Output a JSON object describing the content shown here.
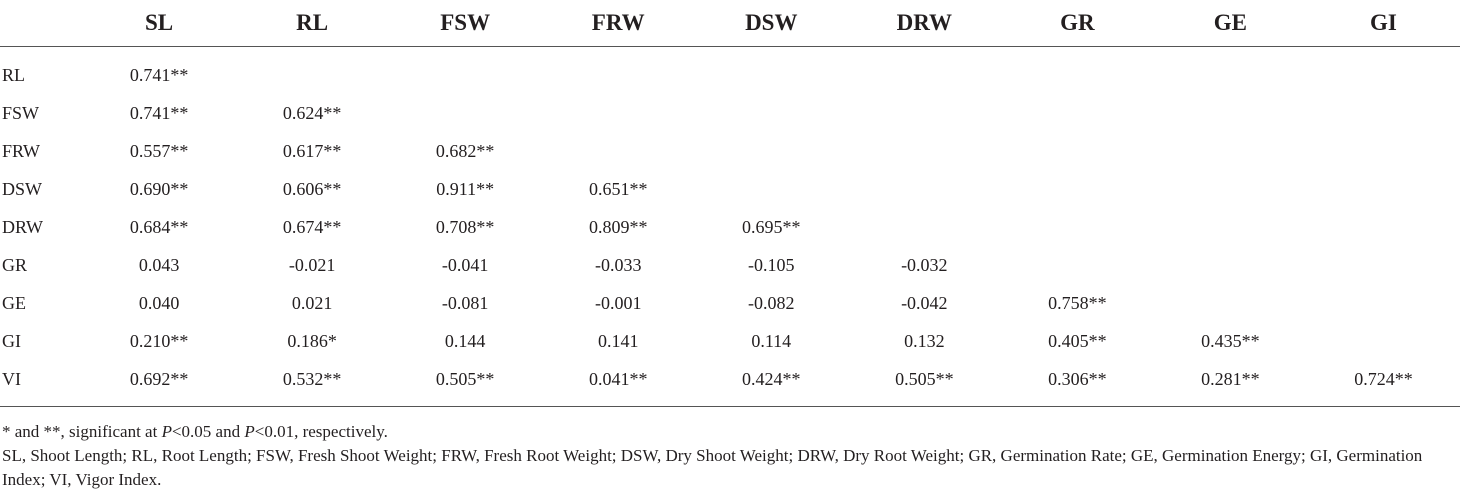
{
  "table": {
    "columns": [
      "SL",
      "RL",
      "FSW",
      "FRW",
      "DSW",
      "DRW",
      "GR",
      "GE",
      "GI"
    ],
    "rows": [
      {
        "label": "RL",
        "cells": [
          "0.741**",
          "",
          "",
          "",
          "",
          "",
          "",
          "",
          ""
        ]
      },
      {
        "label": "FSW",
        "cells": [
          "0.741**",
          "0.624**",
          "",
          "",
          "",
          "",
          "",
          "",
          ""
        ]
      },
      {
        "label": "FRW",
        "cells": [
          "0.557**",
          "0.617**",
          "0.682**",
          "",
          "",
          "",
          "",
          "",
          ""
        ]
      },
      {
        "label": "DSW",
        "cells": [
          "0.690**",
          "0.606**",
          "0.911**",
          "0.651**",
          "",
          "",
          "",
          "",
          ""
        ]
      },
      {
        "label": "DRW",
        "cells": [
          "0.684**",
          "0.674**",
          "0.708**",
          "0.809**",
          "0.695**",
          "",
          "",
          "",
          ""
        ]
      },
      {
        "label": "GR",
        "cells": [
          "0.043",
          "-0.021",
          "-0.041",
          "-0.033",
          "-0.105",
          "-0.032",
          "",
          "",
          ""
        ]
      },
      {
        "label": "GE",
        "cells": [
          "0.040",
          "0.021",
          "-0.081",
          "-0.001",
          "-0.082",
          "-0.042",
          "0.758**",
          "",
          ""
        ]
      },
      {
        "label": "GI",
        "cells": [
          "0.210**",
          "0.186*",
          "0.144",
          "0.141",
          "0.114",
          "0.132",
          "0.405**",
          "0.435**",
          ""
        ]
      },
      {
        "label": "VI",
        "cells": [
          "0.692**",
          "0.532**",
          "0.505**",
          "0.041**",
          "0.424**",
          "0.505**",
          "0.306**",
          "0.281**",
          "0.724**"
        ]
      }
    ]
  },
  "footnotes": {
    "significance": {
      "prefix": "* and **, significant at ",
      "p1": "P",
      "mid": "<0.05 and ",
      "p2": "P",
      "suffix": "<0.01, respectively."
    },
    "abbreviations": "SL, Shoot Length; RL, Root Length; FSW, Fresh Shoot Weight; FRW, Fresh Root Weight; DSW, Dry Shoot Weight; DRW, Dry Root Weight; GR, Germination Rate; GE, Germination Energy; GI, Germination Index; VI, Vigor Index."
  }
}
